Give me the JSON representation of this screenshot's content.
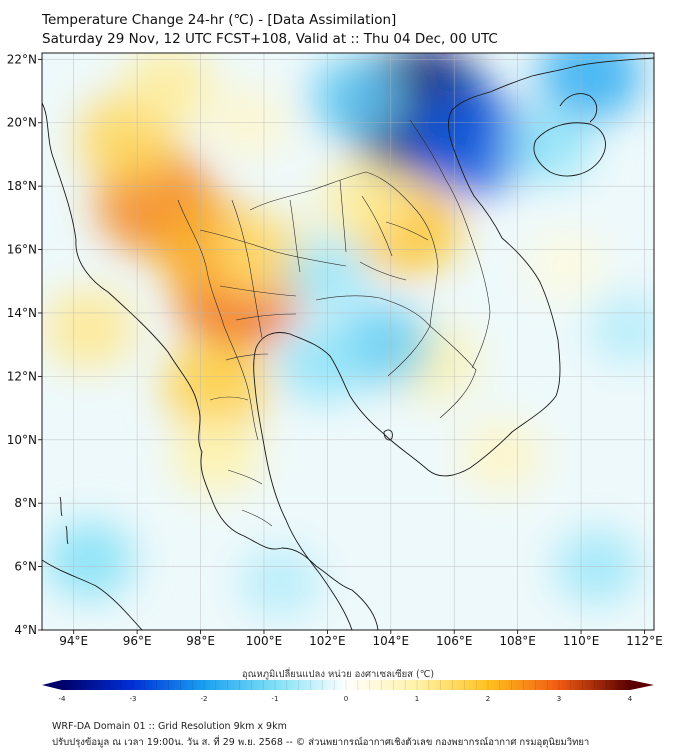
{
  "title": {
    "line1": "Temperature Change 24-hr (℃) - [Data Assimilation]",
    "line2": "Saturday 29 Nov, 12 UTC FCST+108, Valid at :: Thu 04 Dec, 00 UTC"
  },
  "map": {
    "lat_range": [
      4,
      22.2
    ],
    "lon_range": [
      93,
      112.3
    ],
    "lat_ticks": [
      {
        "value": 4,
        "label": "4°N"
      },
      {
        "value": 6,
        "label": "6°N"
      },
      {
        "value": 8,
        "label": "8°N"
      },
      {
        "value": 10,
        "label": "10°N"
      },
      {
        "value": 12,
        "label": "12°N"
      },
      {
        "value": 14,
        "label": "14°N"
      },
      {
        "value": 16,
        "label": "16°N"
      },
      {
        "value": 18,
        "label": "18°N"
      },
      {
        "value": 20,
        "label": "20°N"
      },
      {
        "value": 22,
        "label": "22°N"
      }
    ],
    "lon_ticks": [
      {
        "value": 94,
        "label": "94°E"
      },
      {
        "value": 96,
        "label": "96°E"
      },
      {
        "value": 98,
        "label": "98°E"
      },
      {
        "value": 100,
        "label": "100°E"
      },
      {
        "value": 102,
        "label": "102°E"
      },
      {
        "value": 104,
        "label": "104°E"
      },
      {
        "value": 106,
        "label": "106°E"
      },
      {
        "value": 108,
        "label": "108°E"
      },
      {
        "value": 110,
        "label": "110°E"
      },
      {
        "value": 112,
        "label": "112°E"
      }
    ],
    "field": [
      {
        "lon": 96.6,
        "lat": 17.5,
        "value": 2.6
      },
      {
        "lon": 95.7,
        "lat": 19.5,
        "value": 1.6
      },
      {
        "lon": 99.2,
        "lat": 14.6,
        "value": 2.9
      },
      {
        "lon": 98.4,
        "lat": 16.0,
        "value": 2.2
      },
      {
        "lon": 100.0,
        "lat": 15.8,
        "value": 1.4
      },
      {
        "lon": 104.5,
        "lat": 16.7,
        "value": 2.0
      },
      {
        "lon": 103.2,
        "lat": 17.6,
        "value": 1.1
      },
      {
        "lon": 98.5,
        "lat": 11.7,
        "value": 1.8
      },
      {
        "lon": 98.5,
        "lat": 9.5,
        "value": 1.0
      },
      {
        "lon": 94.5,
        "lat": 13.5,
        "value": 1.2
      },
      {
        "lon": 105.3,
        "lat": 12.5,
        "value": 1.0
      },
      {
        "lon": 104.8,
        "lat": 20.4,
        "value": -4.0
      },
      {
        "lon": 106.5,
        "lat": 19.4,
        "value": -2.6
      },
      {
        "lon": 102.9,
        "lat": 20.8,
        "value": -1.3
      },
      {
        "lon": 110.3,
        "lat": 21.5,
        "value": -1.8
      },
      {
        "lon": 109.0,
        "lat": 19.3,
        "value": -0.9
      },
      {
        "lon": 103.8,
        "lat": 13.0,
        "value": -1.3
      },
      {
        "lon": 101.8,
        "lat": 12.4,
        "value": -0.9
      },
      {
        "lon": 102.0,
        "lat": 15.2,
        "value": -0.8
      },
      {
        "lon": 94.5,
        "lat": 6.2,
        "value": -1.0
      },
      {
        "lon": 100.5,
        "lat": 5.5,
        "value": -0.6
      },
      {
        "lon": 110.5,
        "lat": 6.0,
        "value": -0.8
      },
      {
        "lon": 111.5,
        "lat": 13.5,
        "value": -0.6
      },
      {
        "lon": 107.5,
        "lat": 9.5,
        "value": 0.7
      },
      {
        "lon": 109.5,
        "lat": 15.5,
        "value": 0.4
      },
      {
        "lon": 97.0,
        "lat": 21.2,
        "value": 1.1
      },
      {
        "lon": 99.5,
        "lat": 20.0,
        "value": 0.6
      }
    ]
  },
  "colorbar": {
    "label": "อุณหภูมิเปลี่ยนแปลง หน่วย องศาเซลเซียส (℃)",
    "min": -4,
    "max": 4,
    "tick_values": [
      -4,
      -3,
      -2,
      -1,
      0,
      1,
      2,
      3,
      4
    ],
    "tick_labels": [
      "-4",
      "-3",
      "-2",
      "-1",
      "0",
      "1",
      "2",
      "3",
      "4"
    ],
    "colors": [
      "#00006a",
      "#0030d8",
      "#1aa0f0",
      "#7fe0f7",
      "#ffffff",
      "#fff2a8",
      "#ffc21e",
      "#f05a12",
      "#5a0000"
    ]
  },
  "footer": {
    "line1": "WRF-DA Domain 01 :: Grid Resolution 9km x 9km",
    "line2": "ปรับปรุงข้อมูล ณ เวลา 19:00น. วัน ส. ที่ 29 พ.ย. 2568 -- © ส่วนพยากรณ์อากาศเชิงตัวเลข กองพยากรณ์อากาศ กรมอุตุนิยมวิทยา"
  }
}
